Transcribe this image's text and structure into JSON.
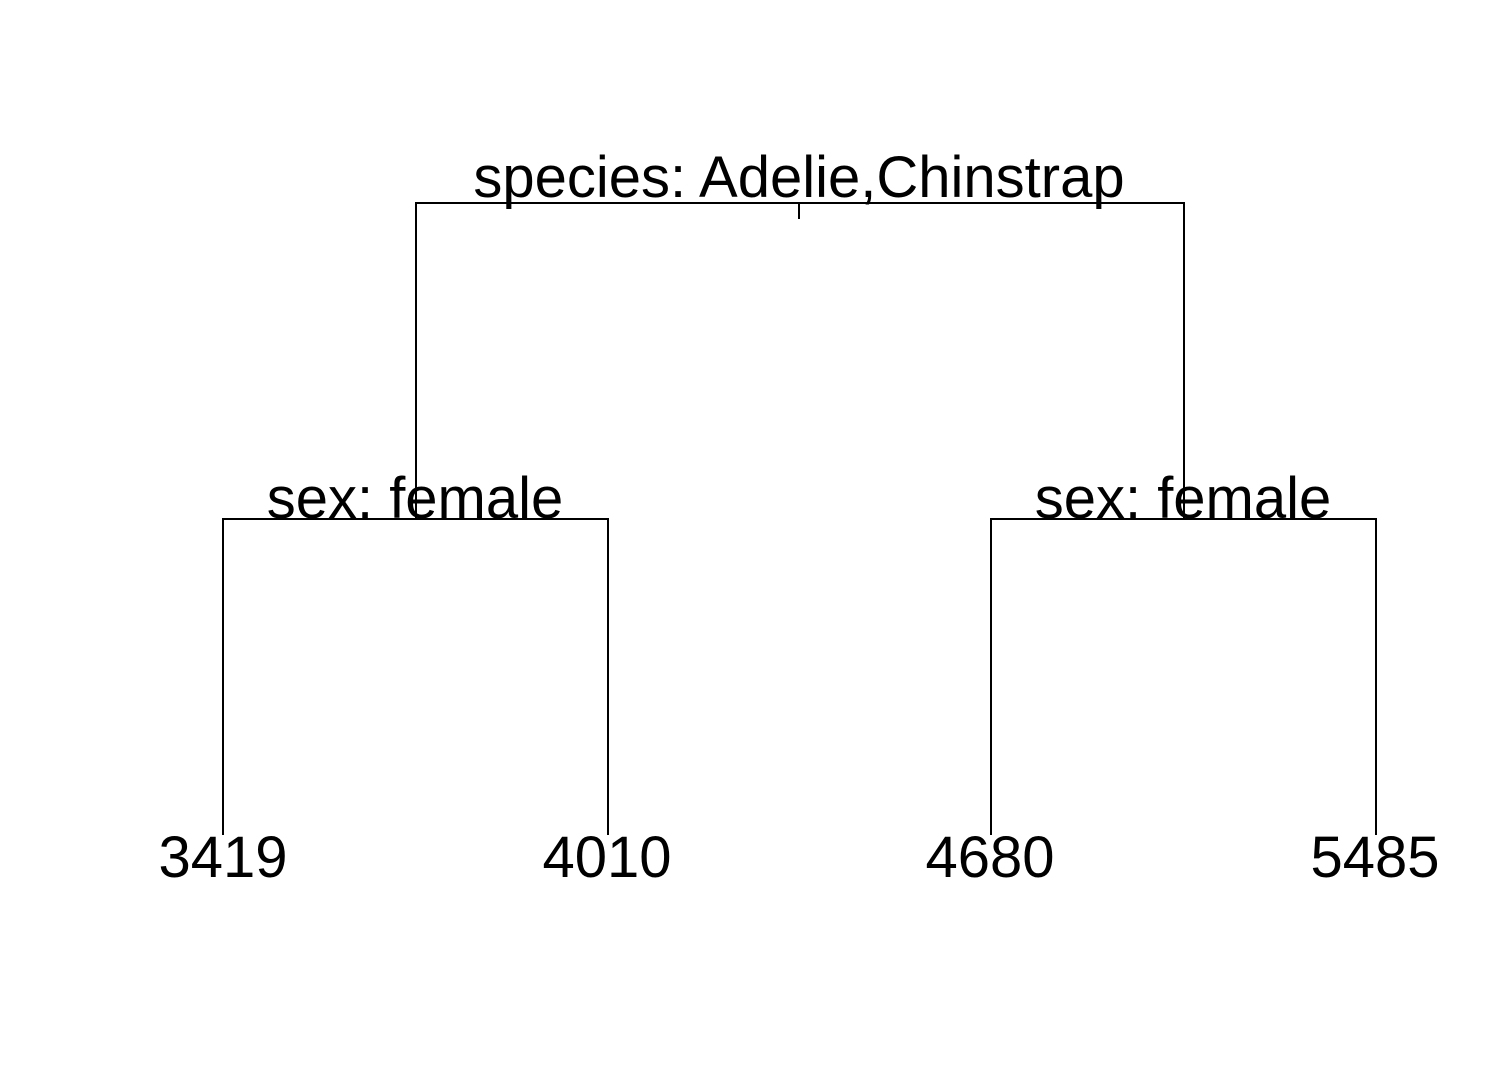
{
  "tree": {
    "root": {
      "split_label": "species: Adelie,Chinstrap"
    },
    "left_child": {
      "split_label": "sex: female",
      "leaves": [
        "3419",
        "4010"
      ]
    },
    "right_child": {
      "split_label": "sex: female",
      "leaves": [
        "4680",
        "5485"
      ]
    },
    "colors": {
      "line": "#000000",
      "text": "#000000",
      "background": "#ffffff"
    }
  }
}
